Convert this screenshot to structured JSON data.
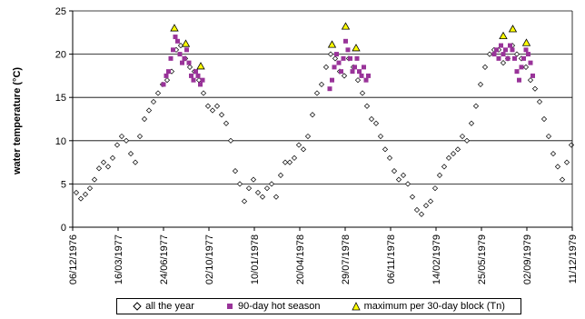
{
  "chart_data": {
    "type": "scatter",
    "title": "",
    "xlabel": "",
    "ylabel": "water temperature (°C)",
    "ylim": [
      0,
      25
    ],
    "yticks": [
      0,
      5,
      10,
      15,
      20,
      25
    ],
    "xlim": [
      "1976-12-06",
      "1979-12-11"
    ],
    "xtick_labels": [
      "06/12/1976",
      "16/03/1977",
      "24/06/1977",
      "02/10/1977",
      "10/01/1978",
      "20/04/1978",
      "29/07/1978",
      "06/11/1978",
      "14/02/1979",
      "25/05/1979",
      "02/09/1979",
      "11/12/1979"
    ],
    "grid": "horizontal",
    "legend_position": "bottom",
    "colors": {
      "all": "#000000",
      "hot": "#993399",
      "max_fill": "#ffff00",
      "max_edge": "#000000"
    },
    "series": [
      {
        "name": "all the year",
        "marker": "open-diamond",
        "x": [
          "1976-12-14",
          "1976-12-24",
          "1977-01-03",
          "1977-01-13",
          "1977-01-23",
          "1977-02-02",
          "1977-02-12",
          "1977-02-22",
          "1977-03-04",
          "1977-03-14",
          "1977-03-24",
          "1977-04-03",
          "1977-04-13",
          "1977-04-23",
          "1977-05-03",
          "1977-05-13",
          "1977-05-23",
          "1977-06-02",
          "1977-06-12",
          "1977-06-22",
          "1977-07-02",
          "1977-07-12",
          "1977-07-22",
          "1977-08-01",
          "1977-08-11",
          "1977-08-21",
          "1977-08-31",
          "1977-09-10",
          "1977-09-20",
          "1977-09-30",
          "1977-10-10",
          "1977-10-20",
          "1977-10-30",
          "1977-11-09",
          "1977-11-19",
          "1977-11-29",
          "1977-12-09",
          "1977-12-19",
          "1977-12-29",
          "1978-01-08",
          "1978-01-18",
          "1978-01-28",
          "1978-02-07",
          "1978-02-17",
          "1978-02-27",
          "1978-03-09",
          "1978-03-19",
          "1978-03-29",
          "1978-04-08",
          "1978-04-18",
          "1978-04-28",
          "1978-05-08",
          "1978-05-18",
          "1978-05-28",
          "1978-06-07",
          "1978-06-17",
          "1978-06-27",
          "1978-07-07",
          "1978-07-17",
          "1978-07-27",
          "1978-08-06",
          "1978-08-16",
          "1978-08-26",
          "1978-09-05",
          "1978-09-15",
          "1978-09-25",
          "1978-10-05",
          "1978-10-15",
          "1978-10-25",
          "1978-11-04",
          "1978-11-14",
          "1978-11-24",
          "1978-12-04",
          "1978-12-14",
          "1978-12-24",
          "1979-01-03",
          "1979-01-13",
          "1979-01-23",
          "1979-02-02",
          "1979-02-12",
          "1979-02-22",
          "1979-03-04",
          "1979-03-14",
          "1979-03-24",
          "1979-04-03",
          "1979-04-13",
          "1979-04-23",
          "1979-05-03",
          "1979-05-13",
          "1979-05-23",
          "1979-06-02",
          "1979-06-12",
          "1979-06-22",
          "1979-07-02",
          "1979-07-12",
          "1979-07-22",
          "1979-08-01",
          "1979-08-11",
          "1979-08-21",
          "1979-08-31",
          "1979-09-10",
          "1979-09-20",
          "1979-09-30",
          "1979-10-10",
          "1979-10-20",
          "1979-10-30",
          "1979-11-09",
          "1979-11-19",
          "1979-11-29",
          "1979-12-09"
        ],
        "y": [
          4.0,
          3.3,
          3.8,
          4.5,
          5.5,
          6.8,
          7.5,
          7.0,
          8.0,
          9.5,
          10.5,
          10.0,
          8.5,
          7.5,
          10.5,
          12.5,
          13.5,
          14.5,
          15.5,
          16.5,
          17.0,
          18.0,
          20.5,
          21.0,
          19.5,
          18.5,
          18.0,
          17.0,
          15.5,
          14.0,
          13.5,
          14.0,
          13.0,
          12.0,
          10.0,
          6.5,
          5.0,
          3.0,
          4.5,
          5.5,
          4.0,
          3.5,
          4.5,
          5.0,
          3.5,
          6.0,
          7.5,
          7.5,
          8.0,
          9.5,
          9.0,
          10.5,
          13.0,
          15.5,
          16.5,
          18.5,
          20.0,
          19.5,
          18.0,
          17.5,
          19.5,
          18.5,
          17.0,
          15.5,
          14.0,
          12.5,
          12.0,
          10.5,
          9.0,
          8.0,
          6.5,
          5.5,
          6.0,
          5.0,
          3.5,
          2.0,
          1.5,
          2.5,
          3.0,
          4.5,
          6.0,
          7.0,
          8.0,
          8.5,
          9.0,
          10.5,
          10.0,
          12.0,
          14.0,
          16.5,
          18.5,
          20.0,
          20.5,
          20.5,
          19.0,
          19.5,
          21.0,
          20.0,
          19.5,
          18.5,
          17.0,
          16.0,
          14.5,
          12.5,
          10.5,
          8.5,
          7.0,
          5.5,
          7.5,
          9.5
        ]
      },
      {
        "name": "90-day hot season",
        "marker": "filled-square",
        "x": [
          "1977-06-24",
          "1977-06-30",
          "1977-07-05",
          "1977-07-10",
          "1977-07-15",
          "1977-07-20",
          "1977-07-25",
          "1977-07-30",
          "1977-08-04",
          "1977-08-09",
          "1977-08-14",
          "1977-08-19",
          "1977-08-24",
          "1977-08-29",
          "1977-09-03",
          "1977-09-08",
          "1977-09-13",
          "1977-09-18",
          "1978-06-25",
          "1978-06-30",
          "1978-07-05",
          "1978-07-10",
          "1978-07-15",
          "1978-07-20",
          "1978-07-25",
          "1978-07-30",
          "1978-08-04",
          "1978-08-09",
          "1978-08-14",
          "1978-08-19",
          "1978-08-24",
          "1978-08-29",
          "1978-09-03",
          "1978-09-08",
          "1978-09-13",
          "1978-09-18",
          "1979-06-22",
          "1979-06-27",
          "1979-07-02",
          "1979-07-07",
          "1979-07-12",
          "1979-07-17",
          "1979-07-22",
          "1979-07-27",
          "1979-08-01",
          "1979-08-06",
          "1979-08-11",
          "1979-08-16",
          "1979-08-21",
          "1979-08-26",
          "1979-08-31",
          "1979-09-05",
          "1979-09-10",
          "1979-09-15"
        ],
        "y": [
          16.5,
          17.5,
          18.0,
          19.5,
          20.5,
          22.0,
          21.5,
          20.0,
          19.0,
          19.5,
          20.5,
          19.0,
          17.5,
          17.0,
          18.0,
          17.5,
          16.5,
          17.0,
          16.0,
          17.0,
          18.5,
          20.0,
          19.0,
          18.0,
          19.5,
          21.5,
          20.5,
          19.5,
          18.0,
          18.5,
          19.5,
          18.0,
          17.5,
          18.5,
          17.0,
          17.5,
          20.0,
          20.5,
          19.5,
          21.0,
          20.0,
          20.5,
          19.5,
          21.0,
          20.5,
          19.5,
          18.0,
          17.0,
          18.5,
          19.5,
          20.5,
          20.0,
          19.0,
          17.5
        ]
      },
      {
        "name": "maximum per 30-day block (Tn)",
        "marker": "triangle",
        "x": [
          "1977-07-18",
          "1977-08-12",
          "1977-09-14",
          "1978-06-30",
          "1978-07-30",
          "1978-08-22",
          "1979-07-12",
          "1979-08-02",
          "1979-09-01"
        ],
        "y": [
          23.0,
          21.2,
          18.6,
          21.1,
          23.2,
          20.7,
          22.1,
          22.9,
          21.3
        ]
      }
    ]
  }
}
